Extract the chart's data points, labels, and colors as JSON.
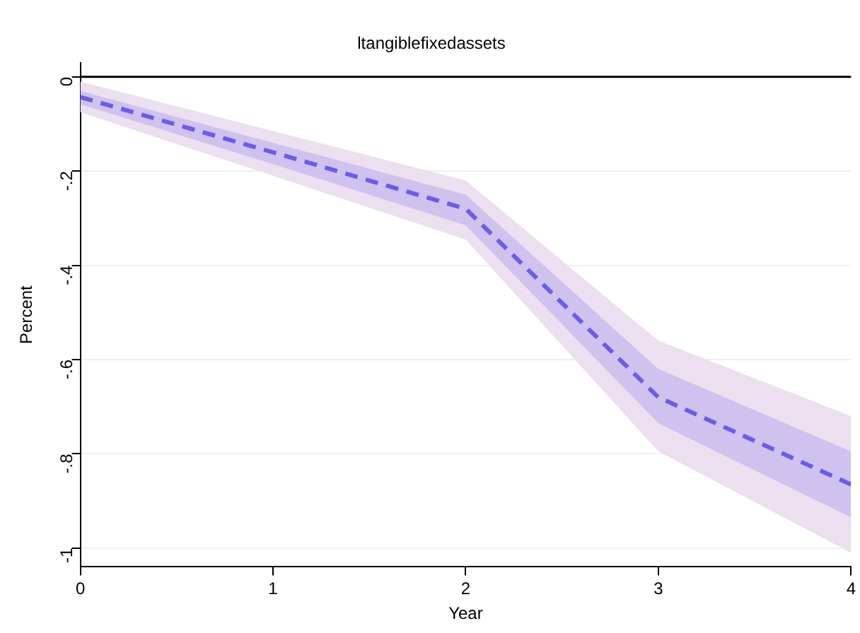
{
  "chart_data": {
    "type": "line",
    "title": "ltangiblefixedassets",
    "xlabel": "Year",
    "ylabel": "Percent",
    "x": [
      0,
      1,
      2,
      3,
      4
    ],
    "series": [
      {
        "color": "#ecdfef",
        "values": [
          null,
          null,
          null,
          null,
          null
        ],
        "lower": [
          -0.075,
          -0.21,
          -0.345,
          -0.795,
          -1.01
        ],
        "upper": [
          -0.01,
          -0.115,
          -0.22,
          -0.56,
          -0.72
        ]
      },
      {
        "color": "#6a5cec",
        "line_style": "dashed",
        "values": [
          -0.043,
          -0.16,
          -0.28,
          -0.68,
          -0.865
        ],
        "lower": [
          -0.058,
          -0.185,
          -0.315,
          -0.735,
          -0.935
        ],
        "upper": [
          -0.03,
          -0.14,
          -0.25,
          -0.62,
          -0.795
        ]
      }
    ],
    "xlim": [
      0,
      4
    ],
    "xticks": [
      0,
      1,
      2,
      3,
      4
    ],
    "ylim": [
      -1.04,
      0.03
    ],
    "yticks": [
      {
        "value": -1,
        "label": "-1"
      },
      {
        "value": -0.8,
        "label": "-.8"
      },
      {
        "value": -0.6,
        "label": "-.6"
      },
      {
        "value": -0.4,
        "label": "-.4"
      },
      {
        "value": -0.2,
        "label": "-.2"
      },
      {
        "value": 0,
        "label": "0"
      }
    ],
    "grid": "y",
    "legend": false,
    "marker": "none",
    "ref_lines": [
      {
        "axis": "y",
        "value": 0,
        "color": "#000000",
        "line_style": "solid"
      }
    ]
  }
}
